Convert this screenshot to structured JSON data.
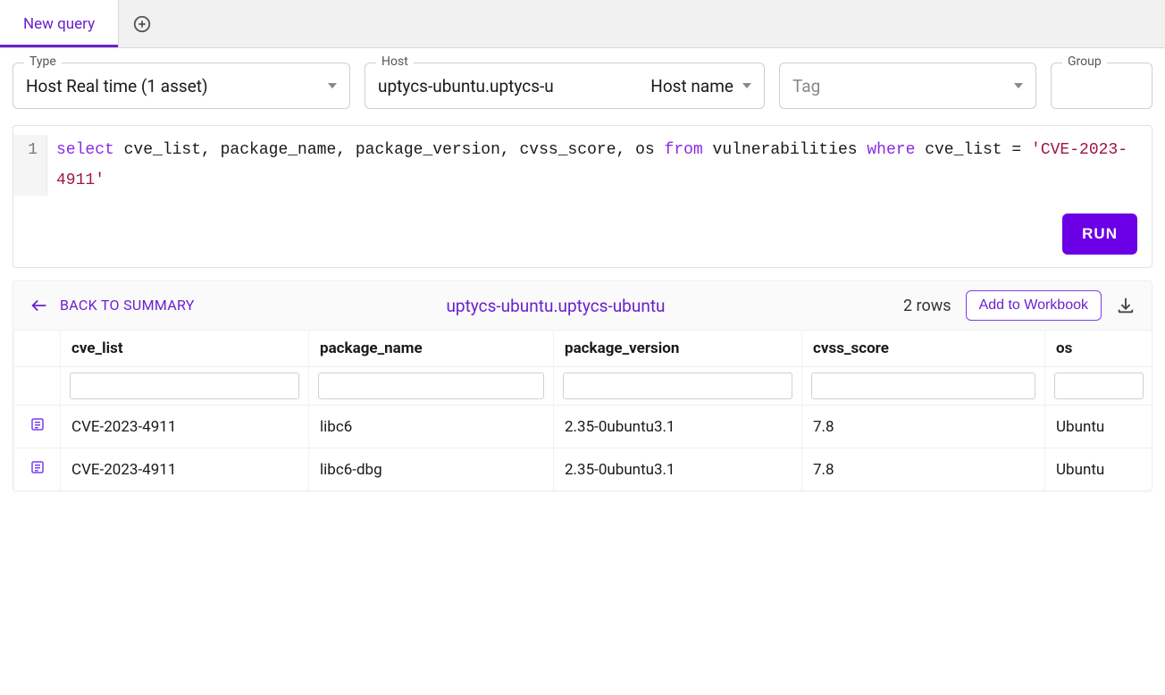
{
  "tabs": {
    "activeLabel": "New query"
  },
  "filters": {
    "type": {
      "legend": "Type",
      "value": "Host Real time (1 asset)"
    },
    "host": {
      "legend": "Host",
      "value": "uptycs-ubuntu.uptycs-u",
      "selector": "Host name"
    },
    "tag": {
      "legend": "",
      "placeholder": "Tag"
    },
    "group": {
      "legend": "Group",
      "value": ""
    }
  },
  "sql": {
    "prefix": "select",
    "cols": " cve_list, package_name, package_version, cvss_score, os ",
    "from": "from",
    "table": " vulnerabilities ",
    "where": "where",
    "cond": " cve_list = ",
    "literal": "'CVE-2023-4911'"
  },
  "runLabel": "RUN",
  "results": {
    "backLabel": "BACK TO SUMMARY",
    "hostTitle": "uptycs-ubuntu.uptycs-ubuntu",
    "rowCountText": "2 rows",
    "addToWorkbookLabel": "Add to Workbook",
    "columns": [
      "cve_list",
      "package_name",
      "package_version",
      "cvss_score",
      "os"
    ],
    "rows": [
      {
        "cve_list": "CVE-2023-4911",
        "package_name": "libc6",
        "package_version": "2.35-0ubuntu3.1",
        "cvss_score": "7.8",
        "os": "Ubuntu"
      },
      {
        "cve_list": "CVE-2023-4911",
        "package_name": "libc6-dbg",
        "package_version": "2.35-0ubuntu3.1",
        "cvss_score": "7.8",
        "os": "Ubuntu"
      }
    ],
    "colWidths": {
      "icon": 52,
      "cve_list": 278,
      "package_name": 274,
      "package_version": 278,
      "cvss_score": 272,
      "os": 120
    }
  },
  "colors": {
    "accent": "#6b21cf",
    "runBtn": "#6b00e6"
  }
}
